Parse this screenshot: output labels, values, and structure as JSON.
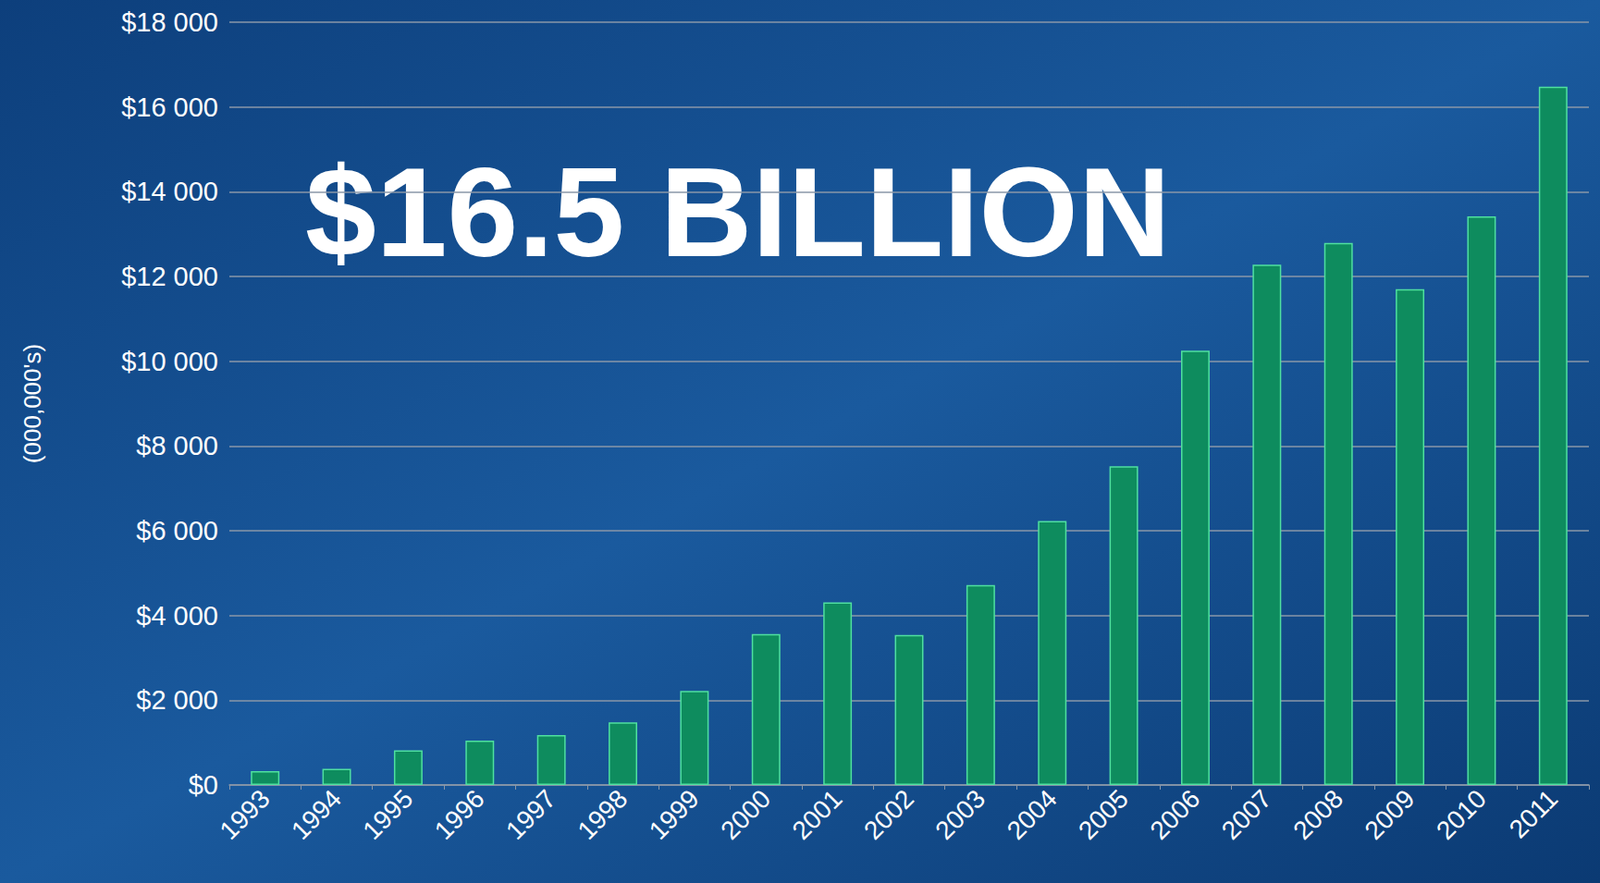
{
  "chart_data": {
    "type": "bar",
    "annotation": "$16.5 BILLION",
    "y_label": "(000,000's)",
    "categories": [
      "1993",
      "1994",
      "1995",
      "1996",
      "1997",
      "1998",
      "1999",
      "2000",
      "2001",
      "2002",
      "2003",
      "2004",
      "2005",
      "2006",
      "2007",
      "2008",
      "2009",
      "2010",
      "2011"
    ],
    "values": [
      330,
      380,
      820,
      1050,
      1180,
      1480,
      2220,
      3560,
      4310,
      3540,
      4720,
      6230,
      7520,
      10250,
      12280,
      12790,
      11700,
      13420,
      16480
    ],
    "color": "#0e8c5e",
    "ylim": [
      0,
      18000
    ],
    "yticks": [
      {
        "value": 0,
        "label": "$0"
      },
      {
        "value": 2000,
        "label": "$2 000"
      },
      {
        "value": 4000,
        "label": "$4 000"
      },
      {
        "value": 6000,
        "label": "$6 000"
      },
      {
        "value": 8000,
        "label": "$8 000"
      },
      {
        "value": 10000,
        "label": "$10 000"
      },
      {
        "value": 12000,
        "label": "$12 000"
      },
      {
        "value": 14000,
        "label": "$14 000"
      },
      {
        "value": 16000,
        "label": "$16 000"
      },
      {
        "value": 18000,
        "label": "$18 000"
      }
    ],
    "grid": true
  }
}
